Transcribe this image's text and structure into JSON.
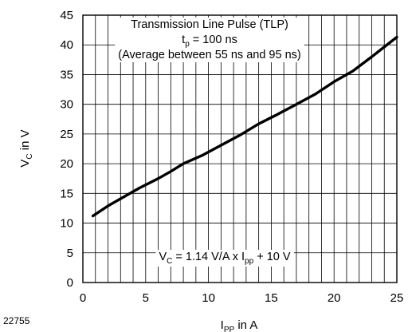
{
  "figure_code": "22755",
  "chart_data": {
    "type": "line",
    "x_axis": {
      "label_main": "I",
      "label_sub": "PP",
      "label_unit": " in A",
      "range": [
        0,
        25
      ],
      "ticks": [
        0,
        5,
        10,
        15,
        20,
        25
      ],
      "minor_step": 1
    },
    "y_axis": {
      "label_main": "V",
      "label_sub": "C",
      "label_unit": " in V",
      "range": [
        0,
        45
      ],
      "ticks": [
        0,
        5,
        10,
        15,
        20,
        25,
        30,
        35,
        40,
        45
      ],
      "minor_step": 5
    },
    "grid": true,
    "annotation": {
      "line1": "Transmission Line Pulse (TLP)",
      "line2_main": "t",
      "line2_sub": "p",
      "line2_rest": " = 100 ns",
      "line3": "(Average between 55 ns and 95 ns)"
    },
    "equation": {
      "v": "V",
      "v_sub": "C",
      "middle": " = 1.14 V/A x I",
      "i_sub": "pp",
      "end": " + 10 V"
    },
    "series": [
      {
        "x": [
          0.8,
          2.0,
          3.0,
          4.5,
          6.0,
          7.0,
          8.0,
          9.5,
          11.0,
          12.5,
          14.0,
          15.5,
          17.0,
          18.5,
          20.0,
          21.5,
          23.0,
          25.0
        ],
        "y": [
          11.2,
          12.9,
          14.1,
          15.9,
          17.5,
          18.7,
          20.0,
          21.4,
          23.1,
          24.8,
          26.7,
          28.3,
          30.0,
          31.7,
          33.8,
          35.6,
          38.0,
          41.3
        ]
      }
    ]
  }
}
